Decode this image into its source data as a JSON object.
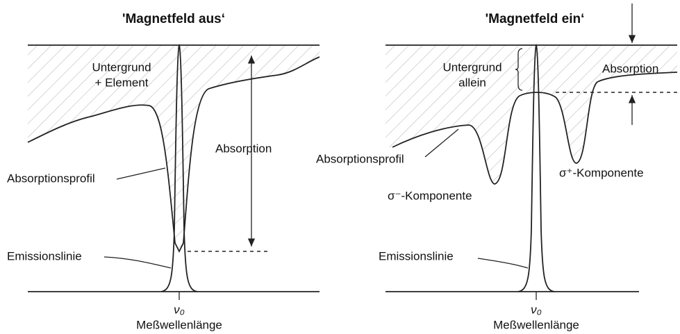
{
  "panels": [
    {
      "title": "'Magnetfeld aus‘",
      "background_label": [
        "Untergrund",
        "+ Element"
      ],
      "absorption_label": "Absorption",
      "profile_label": "Absorptionsprofil",
      "emission_label": "Emissionslinie",
      "axis_symbol": "ν₀",
      "axis_label": "Meßwellenlänge"
    },
    {
      "title": "'Magnetfeld ein‘",
      "background_label": [
        "Untergrund",
        "allein"
      ],
      "absorption_label": "Absorption",
      "profile_label": "Absorptionsprofil",
      "sigma_minus_label": "σ⁻-Komponente",
      "sigma_plus_label": "σ⁺-Komponente",
      "emission_label": "Emissionslinie",
      "axis_symbol": "ν₀",
      "axis_label": "Meßwellenlänge"
    }
  ]
}
